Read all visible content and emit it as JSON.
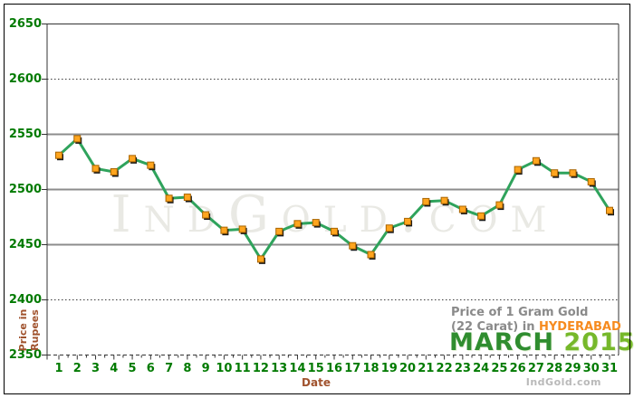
{
  "watermark_text": "IndGold.com",
  "branding_text": "IndGold.com",
  "title": {
    "line1": "Price of 1 Gram Gold",
    "line2_prefix": "(22 Carat) in ",
    "city": "HYDERABAD",
    "month": "MARCH",
    "year": "2015"
  },
  "chart_data": {
    "type": "line",
    "title": "Price of 1 Gram Gold (22 Carat) in HYDERABAD - MARCH 2015",
    "xlabel": "Date",
    "ylabel": "Price in Rupees",
    "ylabel_lines": [
      "Price in",
      "Rupees"
    ],
    "x": [
      1,
      2,
      3,
      4,
      5,
      6,
      7,
      8,
      9,
      10,
      11,
      12,
      13,
      14,
      15,
      16,
      17,
      18,
      19,
      20,
      21,
      22,
      23,
      24,
      25,
      26,
      27,
      28,
      29,
      30,
      31
    ],
    "values": [
      2531,
      2546,
      2519,
      2516,
      2528,
      2522,
      2492,
      2493,
      2477,
      2463,
      2464,
      2437,
      2462,
      2469,
      2470,
      2462,
      2449,
      2441,
      2465,
      2471,
      2489,
      2490,
      2482,
      2476,
      2486,
      2518,
      2526,
      2515,
      2515,
      2507,
      2481
    ],
    "ylim": [
      2350,
      2650
    ],
    "yticks": [
      2350,
      2400,
      2450,
      2500,
      2550,
      2600,
      2650
    ],
    "grid": "horizontal",
    "legend": "none",
    "solid_gridlines": [
      2450,
      2500,
      2550
    ],
    "dotted_gridlines": [
      2400,
      2600
    ],
    "colors": {
      "line": "#2fa35c",
      "marker_fill": "#ffa51e",
      "marker_border": "#a86400",
      "marker_shadow": "#1a1a1a",
      "axis_tick_label": "#007a00",
      "axis_title": "#a0522d",
      "title_gray": "#8a8a8a",
      "city_orange": "#f68b1f",
      "month_green": "#2f8d2f",
      "year_green": "#76b82a",
      "watermark_gray": "#e9e9e4",
      "branding_gray": "#b9b9b9",
      "grid_solid": "#8c8c8c",
      "grid_dotted": "#3a3a3a",
      "frame": "#333333"
    }
  }
}
